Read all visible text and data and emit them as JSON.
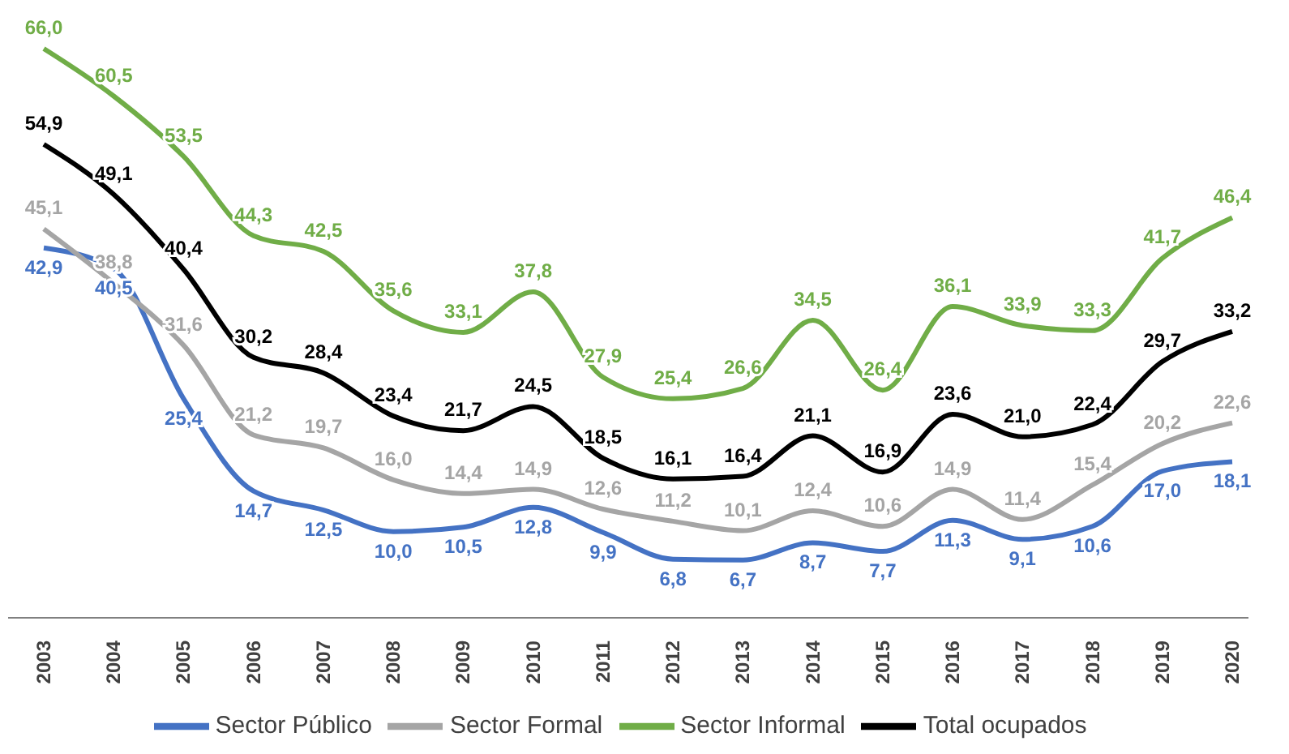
{
  "chart_data": {
    "type": "line",
    "categories": [
      "2003",
      "2004",
      "2005",
      "2006",
      "2007",
      "2008",
      "2009",
      "2010",
      "2011",
      "2012",
      "2013",
      "2014",
      "2015",
      "2016",
      "2017",
      "2018",
      "2019",
      "2020"
    ],
    "series": [
      {
        "name": "Sector Público",
        "color": "#4472c4",
        "values": [
          42.9,
          40.5,
          25.4,
          14.7,
          12.5,
          10.0,
          10.5,
          12.8,
          9.9,
          6.8,
          6.7,
          8.7,
          7.7,
          11.3,
          9.1,
          10.6,
          17.0,
          18.1
        ],
        "value_labels": [
          "42,9",
          "40,5",
          "25,4",
          "14,7",
          "12,5",
          "10,0",
          "10,5",
          "12,8",
          "9,9",
          "6,8",
          "6,7",
          "8,7",
          "7,7",
          "11,3",
          "9,1",
          "10,6",
          "17,0",
          "18,1"
        ]
      },
      {
        "name": "Sector Formal",
        "color": "#a5a5a5",
        "values": [
          45.1,
          38.8,
          31.6,
          21.2,
          19.7,
          16.0,
          14.4,
          14.9,
          12.6,
          11.2,
          10.1,
          12.4,
          10.6,
          14.9,
          11.4,
          15.4,
          20.2,
          22.6
        ],
        "value_labels": [
          "45,1",
          "38,8",
          "31,6",
          "21,2",
          "19,7",
          "16,0",
          "14,4",
          "14,9",
          "12,6",
          "11,2",
          "10,1",
          "12,4",
          "10,6",
          "14,9",
          "11,4",
          "15,4",
          "20,2",
          "22,6"
        ]
      },
      {
        "name": "Sector Informal",
        "color": "#70ad47",
        "values": [
          66.0,
          60.5,
          53.5,
          44.3,
          42.5,
          35.6,
          33.1,
          37.8,
          27.9,
          25.4,
          26.6,
          34.5,
          26.4,
          36.1,
          33.9,
          33.3,
          41.7,
          46.4
        ],
        "value_labels": [
          "66,0",
          "60,5",
          "53,5",
          "44,3",
          "42,5",
          "35,6",
          "33,1",
          "37,8",
          "27,9",
          "25,4",
          "26,6",
          "34,5",
          "26,4",
          "36,1",
          "33,9",
          "33,3",
          "41,7",
          "46,4"
        ]
      },
      {
        "name": "Total ocupados",
        "color": "#000000",
        "values": [
          54.9,
          49.1,
          40.4,
          30.2,
          28.4,
          23.4,
          21.7,
          24.5,
          18.5,
          16.1,
          16.4,
          21.1,
          16.9,
          23.6,
          21.0,
          22.4,
          29.7,
          33.2
        ],
        "value_labels": [
          "54,9",
          "49,1",
          "40,4",
          "30,2",
          "28,4",
          "23,4",
          "21,7",
          "24,5",
          "18,5",
          "16,1",
          "16,4",
          "21,1",
          "16,9",
          "23,6",
          "21,0",
          "22,4",
          "29,7",
          "33,2"
        ]
      }
    ],
    "legend": "bottom",
    "marker": "none",
    "line_style": "solid"
  }
}
